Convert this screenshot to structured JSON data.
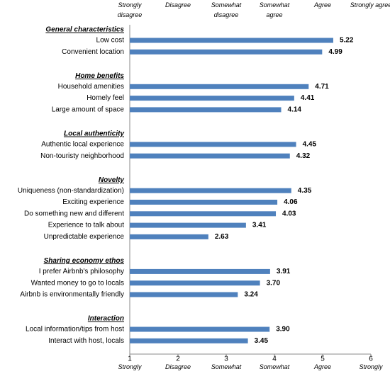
{
  "chart_data": {
    "type": "bar",
    "orientation": "horizontal",
    "color": "#4f81bd",
    "xlim": [
      1,
      6
    ],
    "xticks": [
      1,
      2,
      3,
      4,
      5,
      6
    ],
    "scale_labels": [
      "Strongly disagree",
      "Disagree",
      "Somewhat disagree",
      "Somewhat agree",
      "Agree",
      "Strongly agree"
    ],
    "xtick_sublabels": [
      "Strongly",
      "Disagree",
      "Somewhat",
      "Somewhat",
      "Agree",
      "Strongly"
    ],
    "groups": [
      {
        "name": "General characteristics",
        "categories": [
          "Low cost",
          "Convenient location"
        ],
        "values": [
          5.22,
          4.99
        ],
        "value_labels": [
          "5.22",
          "4.99"
        ]
      },
      {
        "name": "Home benefits",
        "categories": [
          "Household amenities",
          "Homely feel",
          "Large amount of space"
        ],
        "values": [
          4.71,
          4.41,
          4.14
        ],
        "value_labels": [
          "4.71",
          "4.41",
          "4.14"
        ]
      },
      {
        "name": "Local authenticity",
        "categories": [
          "Authentic local experience",
          "Non-touristy neighborhood"
        ],
        "values": [
          4.45,
          4.32
        ],
        "value_labels": [
          "4.45",
          "4.32"
        ]
      },
      {
        "name": "Novelty",
        "categories": [
          "Uniqueness (non-standardization)",
          "Exciting experience",
          "Do something new and different",
          "Experience to talk about",
          "Unpredictable experience"
        ],
        "values": [
          4.35,
          4.06,
          4.03,
          3.41,
          2.63
        ],
        "value_labels": [
          "4.35",
          "4.06",
          "4.03",
          "3.41",
          "2.63"
        ]
      },
      {
        "name": "Sharing economy ethos",
        "categories": [
          "I prefer Airbnb's philosophy",
          "Wanted  money to go to locals",
          "Airbnb is environmentally friendly"
        ],
        "values": [
          3.91,
          3.7,
          3.24
        ],
        "value_labels": [
          "3.91",
          "3.70",
          "3.24"
        ]
      },
      {
        "name": "Interaction",
        "categories": [
          "Local information/tips from host",
          "Interact with host, locals"
        ],
        "values": [
          3.9,
          3.45
        ],
        "value_labels": [
          "3.90",
          "3.45"
        ]
      }
    ]
  }
}
